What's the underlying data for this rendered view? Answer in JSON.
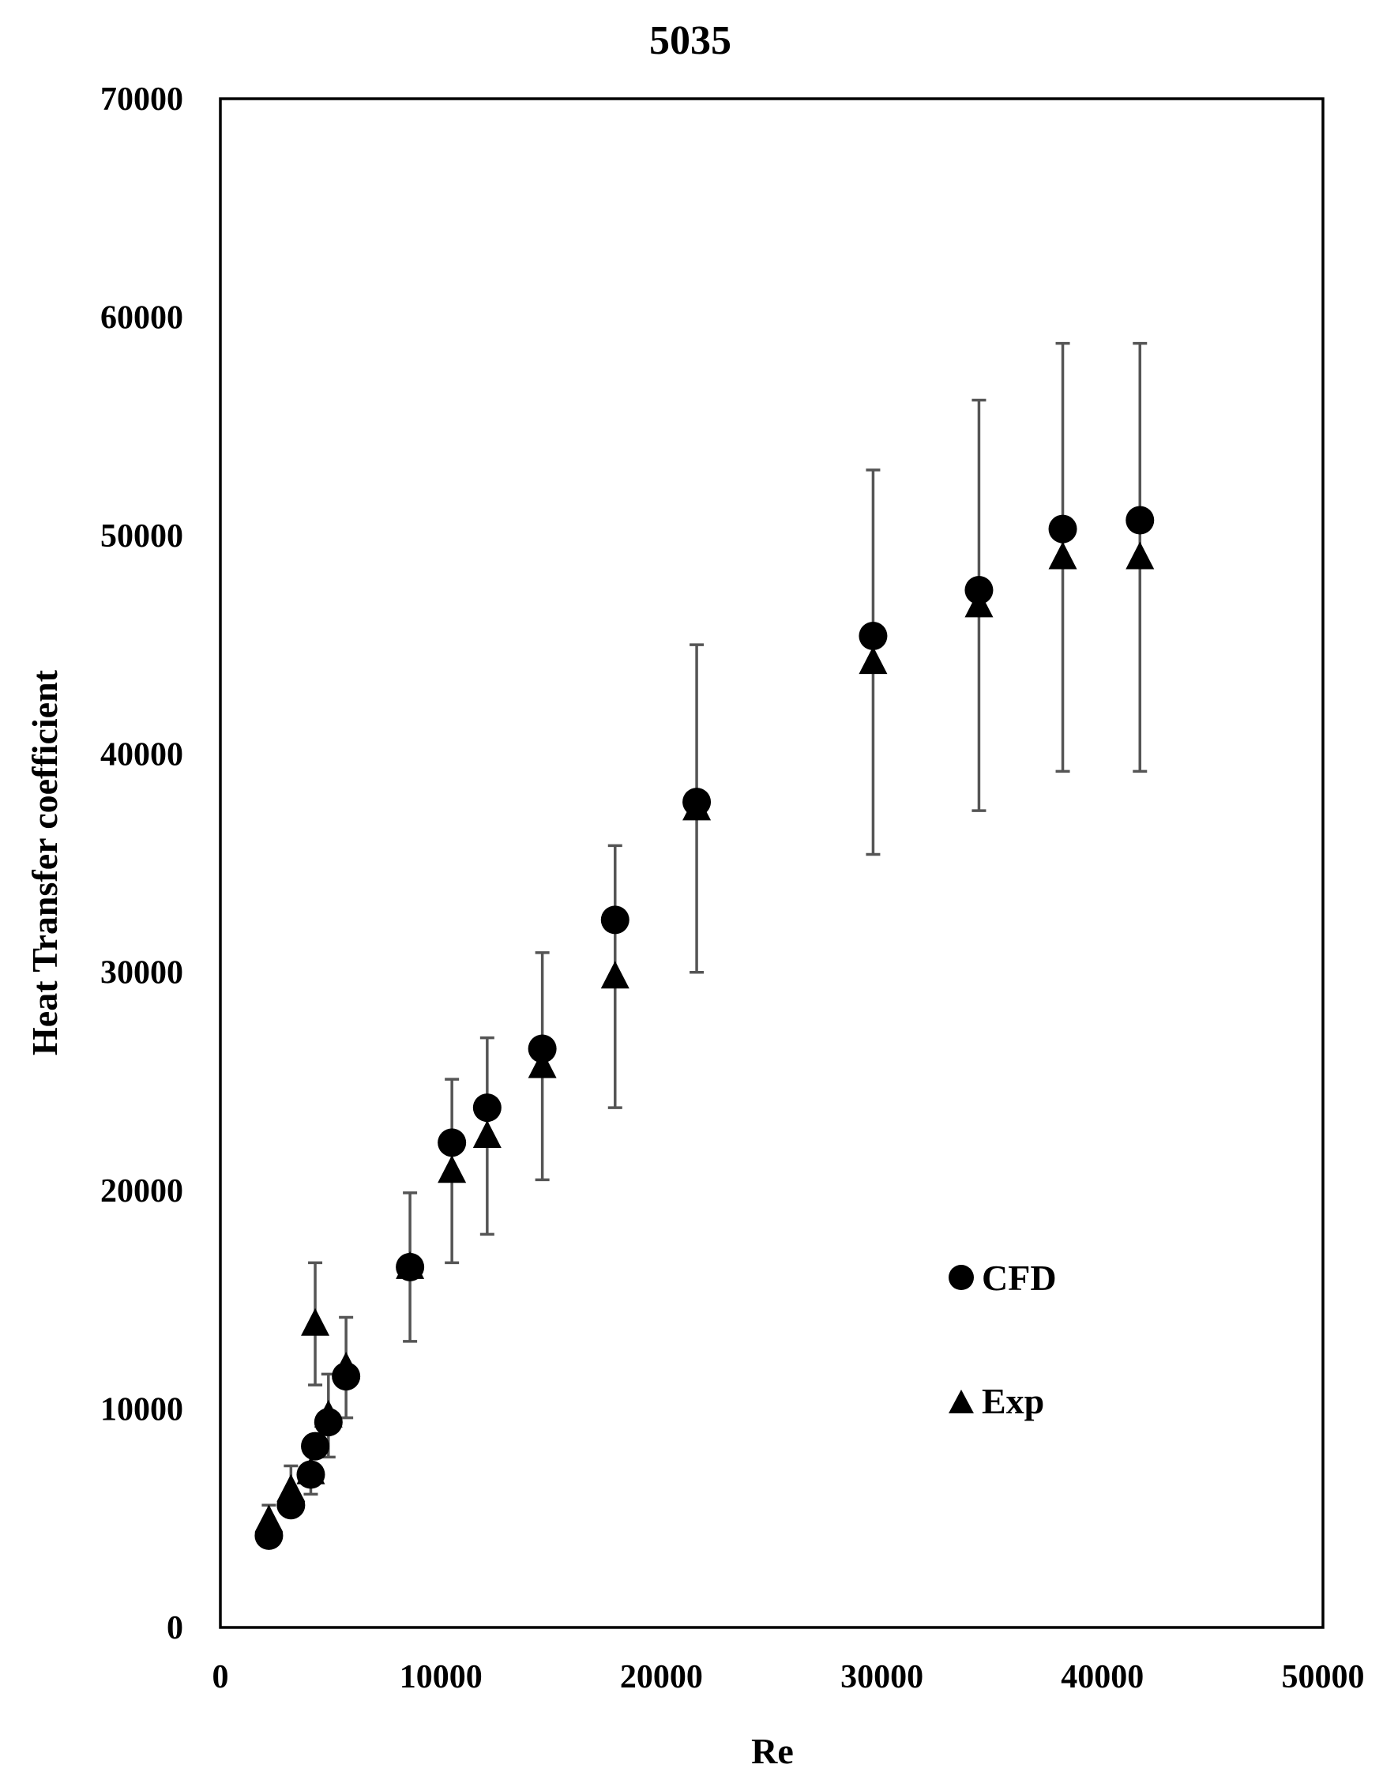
{
  "chart_data": {
    "type": "scatter",
    "title": "5035",
    "xlabel": "Re",
    "ylabel": "Heat Transfer coefficient",
    "xlim": [
      0,
      50000
    ],
    "ylim": [
      0,
      70000
    ],
    "xticks": [
      "0",
      "10000",
      "20000",
      "30000",
      "40000",
      "50000"
    ],
    "yticks": [
      "0",
      "10000",
      "20000",
      "30000",
      "40000",
      "50000",
      "60000",
      "70000"
    ],
    "grid": false,
    "legend_position": "right",
    "series": [
      {
        "name": "CFD",
        "marker": "circle",
        "color": "#000000",
        "points": [
          {
            "x": 2200,
            "y": 4200
          },
          {
            "x": 3200,
            "y": 5600
          },
          {
            "x": 4100,
            "y": 7000
          },
          {
            "x": 4300,
            "y": 8300
          },
          {
            "x": 4900,
            "y": 9400
          },
          {
            "x": 5700,
            "y": 11500
          },
          {
            "x": 8600,
            "y": 16500
          },
          {
            "x": 10500,
            "y": 22200
          },
          {
            "x": 12100,
            "y": 23800
          },
          {
            "x": 14600,
            "y": 26500
          },
          {
            "x": 17900,
            "y": 32400
          },
          {
            "x": 21600,
            "y": 37800
          },
          {
            "x": 29600,
            "y": 45400
          },
          {
            "x": 34400,
            "y": 47500
          },
          {
            "x": 38200,
            "y": 50300
          },
          {
            "x": 41700,
            "y": 50700
          }
        ]
      },
      {
        "name": "Exp",
        "marker": "triangle",
        "color": "#000000",
        "points": [
          {
            "x": 2200,
            "y": 4900,
            "err": 700
          },
          {
            "x": 3200,
            "y": 6300,
            "err": 1100
          },
          {
            "x": 4100,
            "y": 7100,
            "err": 1000
          },
          {
            "x": 4300,
            "y": 13900,
            "err": 2800
          },
          {
            "x": 4900,
            "y": 9700,
            "err": 1900
          },
          {
            "x": 5700,
            "y": 11900,
            "err": 2300
          },
          {
            "x": 8600,
            "y": 16500,
            "err": 3400
          },
          {
            "x": 10500,
            "y": 20900,
            "err": 4200
          },
          {
            "x": 12100,
            "y": 22500,
            "err": 4500
          },
          {
            "x": 14600,
            "y": 25700,
            "err": 5200
          },
          {
            "x": 17900,
            "y": 29800,
            "err": 6000
          },
          {
            "x": 21600,
            "y": 37500,
            "err": 7500
          },
          {
            "x": 29600,
            "y": 44200,
            "err": 8800
          },
          {
            "x": 34400,
            "y": 46800,
            "err": 9400
          },
          {
            "x": 38200,
            "y": 49000,
            "err": 9800
          },
          {
            "x": 41700,
            "y": 49000,
            "err": 9800
          }
        ]
      }
    ],
    "errorbar_color": "#555555"
  }
}
